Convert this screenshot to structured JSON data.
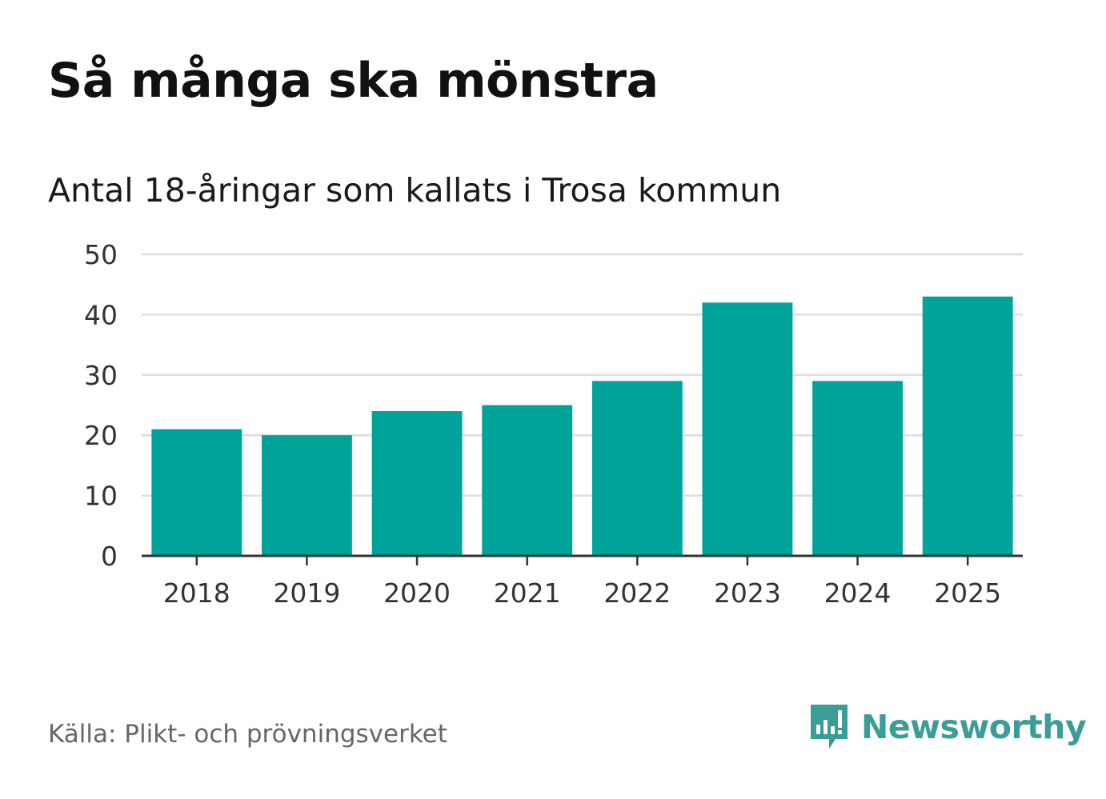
{
  "title": "Så många ska mönstra",
  "subtitle": "Antal 18-åringar som kallats i Trosa kommun",
  "source": "Källa: Plikt- och prövningsverket",
  "brand": {
    "name": "Newsworthy",
    "logo_icon": "bar-chart-speech-bubble-icon",
    "color": "#3a9d96"
  },
  "colors": {
    "bar": "#00a39a",
    "grid": "#dddde2",
    "axis": "#333333",
    "tick_text": "#333333"
  },
  "chart_data": {
    "type": "bar",
    "title": "Antal 18-åringar som kallats i Trosa kommun",
    "xlabel": "",
    "ylabel": "",
    "categories": [
      "2018",
      "2019",
      "2020",
      "2021",
      "2022",
      "2023",
      "2024",
      "2025"
    ],
    "values": [
      21,
      20,
      24,
      25,
      29,
      42,
      29,
      43
    ],
    "ylim": [
      0,
      50
    ],
    "yticks": [
      "0",
      "10",
      "20",
      "30",
      "40",
      "50"
    ],
    "grid": true
  }
}
